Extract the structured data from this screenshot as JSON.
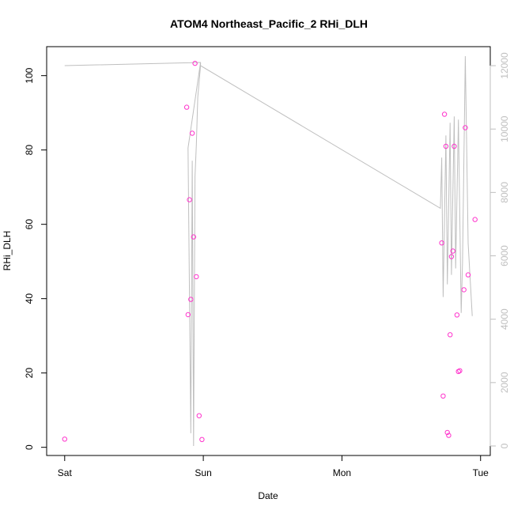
{
  "chart_data": {
    "type": "scatter",
    "title": "ATOM4 Northeast_Pacific_2 RHi_DLH",
    "xlabel": "Date",
    "ylabel": "RHi_DLH",
    "x_ticks": [
      "Sat",
      "Sun",
      "Mon",
      "Tue"
    ],
    "x_tick_days": [
      0,
      1,
      2,
      3
    ],
    "xlim_days": [
      -0.13,
      3.07
    ],
    "ylim": [
      -2.2,
      107.8
    ],
    "y_ticks": [
      0,
      20,
      40,
      60,
      80,
      100
    ],
    "y2lim": [
      -300,
      12600
    ],
    "y2_ticks": [
      0,
      2000,
      4000,
      6000,
      8000,
      10000,
      12000
    ],
    "grid": false,
    "colors": {
      "points": "#ff33cc",
      "line": "#bfbfbf",
      "axis": "#000000",
      "axis_right": "#bfbfbf"
    },
    "series": [
      {
        "type": "points",
        "axis": "left",
        "points": [
          {
            "day": 0.0,
            "y": 2.2
          },
          {
            "day": 0.88,
            "y": 91.5
          },
          {
            "day": 0.89,
            "y": 35.7
          },
          {
            "day": 0.9,
            "y": 66.6
          },
          {
            "day": 0.91,
            "y": 39.8
          },
          {
            "day": 0.92,
            "y": 84.5
          },
          {
            "day": 0.93,
            "y": 56.6
          },
          {
            "day": 0.94,
            "y": 103.3
          },
          {
            "day": 0.95,
            "y": 45.9
          },
          {
            "day": 0.97,
            "y": 8.5
          },
          {
            "day": 0.99,
            "y": 2.1
          },
          {
            "day": 2.72,
            "y": 55.0
          },
          {
            "day": 2.73,
            "y": 13.8
          },
          {
            "day": 2.74,
            "y": 89.6
          },
          {
            "day": 2.75,
            "y": 81.0
          },
          {
            "day": 2.76,
            "y": 4.0
          },
          {
            "day": 2.77,
            "y": 3.2
          },
          {
            "day": 2.78,
            "y": 30.3
          },
          {
            "day": 2.79,
            "y": 51.3
          },
          {
            "day": 2.8,
            "y": 52.8
          },
          {
            "day": 2.81,
            "y": 81.0
          },
          {
            "day": 2.83,
            "y": 35.6
          },
          {
            "day": 2.84,
            "y": 20.4
          },
          {
            "day": 2.85,
            "y": 20.6
          },
          {
            "day": 2.88,
            "y": 42.4
          },
          {
            "day": 2.89,
            "y": 86.0
          },
          {
            "day": 2.91,
            "y": 46.4
          },
          {
            "day": 2.96,
            "y": 61.3
          }
        ]
      },
      {
        "type": "line",
        "axis": "right",
        "points": [
          {
            "day": 0.0,
            "y": 12000
          },
          {
            "day": 0.98,
            "y": 12100
          },
          {
            "day": 0.98,
            "y": 12000
          },
          {
            "day": 0.96,
            "y": 11000
          },
          {
            "day": 0.95,
            "y": 9500
          },
          {
            "day": 0.94,
            "y": 8500
          },
          {
            "day": 0.93,
            "y": 0
          },
          {
            "day": 0.92,
            "y": 9000
          },
          {
            "day": 0.91,
            "y": 400
          },
          {
            "day": 0.89,
            "y": 9400
          },
          {
            "day": 0.98,
            "y": 12100
          },
          {
            "day": 0.98,
            "y": 12000
          },
          {
            "day": 2.71,
            "y": 7500
          },
          {
            "day": 2.72,
            "y": 9100
          },
          {
            "day": 2.73,
            "y": 4700
          },
          {
            "day": 2.75,
            "y": 9800
          },
          {
            "day": 2.76,
            "y": 5100
          },
          {
            "day": 2.78,
            "y": 10200
          },
          {
            "day": 2.79,
            "y": 5400
          },
          {
            "day": 2.81,
            "y": 10400
          },
          {
            "day": 2.82,
            "y": 5600
          },
          {
            "day": 2.84,
            "y": 10300
          },
          {
            "day": 2.86,
            "y": 4200
          },
          {
            "day": 2.87,
            "y": 5800
          },
          {
            "day": 2.89,
            "y": 12300
          },
          {
            "day": 2.91,
            "y": 6400
          },
          {
            "day": 2.94,
            "y": 4100
          }
        ]
      }
    ]
  }
}
